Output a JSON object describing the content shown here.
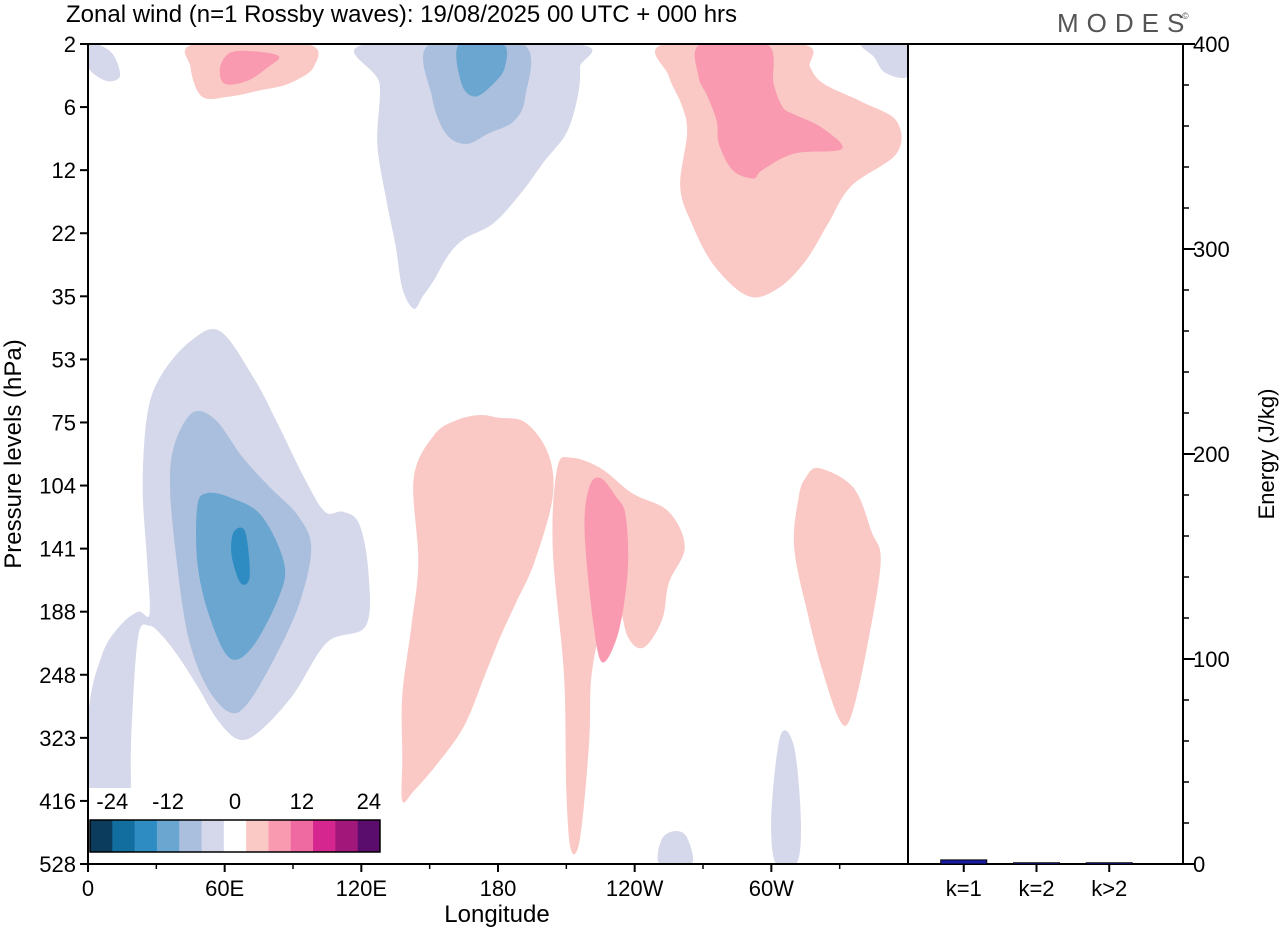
{
  "chart_data": [
    {
      "type": "heatmap",
      "title": "Zonal wind (n=1 Rossby waves):  19/08/2025  00 UTC  + 000 hrs",
      "brand": "MODES",
      "brand_mark": "©",
      "xlabel": "Longitude",
      "ylabel": "Pressure levels (hPa)",
      "x_range_deg": [
        0,
        360
      ],
      "x_ticks": [
        {
          "deg": 0,
          "label": "0"
        },
        {
          "deg": 60,
          "label": "60E"
        },
        {
          "deg": 120,
          "label": "120E"
        },
        {
          "deg": 180,
          "label": "180"
        },
        {
          "deg": 240,
          "label": "120W"
        },
        {
          "deg": 300,
          "label": "60W"
        }
      ],
      "y_levels": [
        "2",
        "6",
        "12",
        "22",
        "35",
        "53",
        "75",
        "104",
        "141",
        "188",
        "248",
        "323",
        "416",
        "528"
      ],
      "colorbar": {
        "labels": [
          "-24",
          "-12",
          "0",
          "12",
          "24"
        ],
        "colors": [
          "#0b3c5d",
          "#136ea0",
          "#2f8cc2",
          "#6aa6d0",
          "#a9bfdd",
          "#d5d8ea",
          "#ffffff",
          "#fac9c5",
          "#f99ab0",
          "#f06aa2",
          "#d5268f",
          "#a1177a",
          "#5b0d6d"
        ]
      },
      "contours": [
        {
          "name": "neg-upper-strat-light",
          "color": "#d5d8ea",
          "pts": [
            [
              122,
              2
            ],
            [
              128,
              4
            ],
            [
              127,
              9
            ],
            [
              131,
              16
            ],
            [
              135,
              24
            ],
            [
              138,
              33
            ],
            [
              143,
              38
            ],
            [
              147,
              35
            ],
            [
              152,
              31
            ],
            [
              158,
              26
            ],
            [
              165,
              23
            ],
            [
              178,
              20
            ],
            [
              190,
              15
            ],
            [
              200,
              11
            ],
            [
              210,
              8
            ],
            [
              215,
              5
            ],
            [
              216,
              3
            ],
            [
              214,
              2
            ]
          ]
        },
        {
          "name": "neg-upper-strat-mid",
          "color": "#a9bfdd",
          "pts": [
            [
              150,
              2
            ],
            [
              151,
              5
            ],
            [
              157,
              8
            ],
            [
              166,
              9
            ],
            [
              176,
              8
            ],
            [
              187,
              7
            ],
            [
              192,
              5
            ],
            [
              191,
              2
            ]
          ]
        },
        {
          "name": "neg-upper-strat-core",
          "color": "#6aa6d0",
          "pts": [
            [
              163,
              2
            ],
            [
              164,
              4
            ],
            [
              170,
              5
            ],
            [
              178,
              4
            ],
            [
              183,
              3
            ],
            [
              182,
              2
            ]
          ]
        },
        {
          "name": "neg-edge-left-top",
          "color": "#d5d8ea",
          "pts": [
            [
              0,
              2
            ],
            [
              0,
              3
            ],
            [
              8,
              3.8
            ],
            [
              14,
              3.5
            ],
            [
              11,
              2.4
            ],
            [
              4,
              2
            ]
          ]
        },
        {
          "name": "neg-edge-right-top",
          "color": "#d5d8ea",
          "pts": [
            [
              340,
              2
            ],
            [
              345,
              2.5
            ],
            [
              350,
              3.3
            ],
            [
              360,
              3.5
            ],
            [
              360,
              2
            ]
          ]
        },
        {
          "name": "neg-lower-large-light",
          "color": "#d5d8ea",
          "pts": [
            [
              0,
              300
            ],
            [
              0,
              528
            ],
            [
              17,
              528
            ],
            [
              19,
              320
            ],
            [
              22,
              210
            ],
            [
              27,
              200
            ],
            [
              33,
              210
            ],
            [
              40,
              230
            ],
            [
              48,
              260
            ],
            [
              57,
              300
            ],
            [
              66,
              325
            ],
            [
              75,
              315
            ],
            [
              90,
              270
            ],
            [
              105,
              215
            ],
            [
              122,
              200
            ],
            [
              123,
              155
            ],
            [
              119,
              125
            ],
            [
              112,
              118
            ],
            [
              104,
              118
            ],
            [
              95,
              100
            ],
            [
              83,
              75
            ],
            [
              73,
              59
            ],
            [
              58,
              44
            ],
            [
              45,
              47
            ],
            [
              32,
              58
            ],
            [
              26,
              72
            ],
            [
              24,
              105
            ],
            [
              26,
              150
            ],
            [
              27,
              190
            ],
            [
              22,
              188
            ],
            [
              14,
              200
            ],
            [
              6,
              228
            ]
          ]
        },
        {
          "name": "neg-lower-mid",
          "color": "#a9bfdd",
          "pts": [
            [
              38,
              84
            ],
            [
              36,
              105
            ],
            [
              39,
              150
            ],
            [
              44,
              210
            ],
            [
              52,
              260
            ],
            [
              62,
              290
            ],
            [
              70,
              280
            ],
            [
              82,
              230
            ],
            [
              93,
              180
            ],
            [
              98,
              140
            ],
            [
              92,
              120
            ],
            [
              80,
              105
            ],
            [
              68,
              90
            ],
            [
              56,
              74
            ],
            [
              46,
              71
            ]
          ]
        },
        {
          "name": "neg-lower-strong",
          "color": "#6aa6d0",
          "pts": [
            [
              48,
              115
            ],
            [
              48,
              150
            ],
            [
              53,
              190
            ],
            [
              62,
              230
            ],
            [
              72,
              220
            ],
            [
              84,
              175
            ],
            [
              86,
              150
            ],
            [
              76,
              120
            ],
            [
              62,
              110
            ],
            [
              52,
              108
            ]
          ]
        },
        {
          "name": "neg-lower-core",
          "color": "#2f8cc2",
          "pts": [
            [
              64,
              130
            ],
            [
              63,
              145
            ],
            [
              67,
              165
            ],
            [
              71,
              160
            ],
            [
              69,
              130
            ]
          ]
        },
        {
          "name": "neg-east-small",
          "color": "#d5d8ea",
          "pts": [
            [
              302,
              528
            ],
            [
              300,
              440
            ],
            [
              304,
              320
            ],
            [
              310,
              335
            ],
            [
              313,
              450
            ],
            [
              311,
              528
            ]
          ]
        },
        {
          "name": "neg-bottom-small",
          "color": "#d5d8ea",
          "pts": [
            [
              251,
              528
            ],
            [
              252,
              480
            ],
            [
              258,
              466
            ],
            [
              263,
              478
            ],
            [
              265,
              528
            ]
          ]
        },
        {
          "name": "pos-top-left-light",
          "color": "#fac9c5",
          "pts": [
            [
              45,
              3
            ],
            [
              50,
              5
            ],
            [
              62,
              5
            ],
            [
              75,
              4.5
            ],
            [
              88,
              4
            ],
            [
              99,
              3
            ],
            [
              96,
              2
            ],
            [
              47,
              2
            ]
          ]
        },
        {
          "name": "pos-top-left-mid",
          "color": "#f99ab0",
          "pts": [
            [
              58,
              3
            ],
            [
              60,
              4
            ],
            [
              70,
              3.8
            ],
            [
              79,
              3
            ],
            [
              84,
              2.5
            ],
            [
              76,
              2.3
            ],
            [
              63,
              2.3
            ]
          ]
        },
        {
          "name": "pos-east-strat-light",
          "color": "#fac9c5",
          "pts": [
            [
              253,
              2
            ],
            [
              255,
              3.5
            ],
            [
              261,
              6
            ],
            [
              263,
              8
            ],
            [
              260,
              14
            ],
            [
              265,
              20
            ],
            [
              275,
              28
            ],
            [
              290,
              35
            ],
            [
              303,
              33
            ],
            [
              315,
              27
            ],
            [
              325,
              20
            ],
            [
              335,
              14
            ],
            [
              355,
              10
            ],
            [
              355,
              7
            ],
            [
              340,
              5.5
            ],
            [
              323,
              4
            ],
            [
              317,
              3
            ],
            [
              313,
              2
            ]
          ]
        },
        {
          "name": "pos-east-strat-mid",
          "color": "#f99ab0",
          "pts": [
            [
              269,
              2
            ],
            [
              268,
              3.5
            ],
            [
              272,
              5
            ],
            [
              276,
              7
            ],
            [
              277,
              9
            ],
            [
              283,
              12
            ],
            [
              292,
              13
            ],
            [
              296,
              12
            ],
            [
              310,
              10
            ],
            [
              331,
              9.5
            ],
            [
              322,
              7.5
            ],
            [
              310,
              6.5
            ],
            [
              305,
              6
            ],
            [
              301,
              4
            ],
            [
              298,
              2
            ]
          ]
        },
        {
          "name": "pos-mid-light-1",
          "color": "#fac9c5",
          "pts": [
            [
              138,
              416
            ],
            [
              143,
              400
            ],
            [
              153,
              360
            ],
            [
              165,
              308
            ],
            [
              174,
              250
            ],
            [
              181,
              210
            ],
            [
              188,
              180
            ],
            [
              196,
              150
            ],
            [
              204,
              110
            ],
            [
              202,
              88
            ],
            [
              192,
              75
            ],
            [
              180,
              73
            ],
            [
              172,
              72
            ],
            [
              162,
              74
            ],
            [
              152,
              80
            ],
            [
              143,
              100
            ],
            [
              145,
              150
            ],
            [
              142,
              200
            ],
            [
              138,
              270
            ],
            [
              138,
              350
            ]
          ]
        },
        {
          "name": "pos-mid-light-2",
          "color": "#fac9c5",
          "pts": [
            [
              212,
              500
            ],
            [
              216,
              480
            ],
            [
              220,
              330
            ],
            [
              221,
              250
            ],
            [
              226,
              195
            ],
            [
              232,
              175
            ],
            [
              237,
              210
            ],
            [
              244,
              220
            ],
            [
              252,
              195
            ],
            [
              255,
              165
            ],
            [
              262,
              140
            ],
            [
              255,
              118
            ],
            [
              239,
              108
            ],
            [
              225,
              95
            ],
            [
              212,
              90
            ],
            [
              206,
              95
            ],
            [
              204,
              140
            ],
            [
              209,
              250
            ],
            [
              210,
              400
            ]
          ]
        },
        {
          "name": "pos-mid-core",
          "color": "#f99ab0",
          "pts": [
            [
              220,
              105
            ],
            [
              218,
              130
            ],
            [
              222,
              200
            ],
            [
              226,
              235
            ],
            [
              233,
              205
            ],
            [
              237,
              155
            ],
            [
              236,
              120
            ],
            [
              232,
              110
            ],
            [
              225,
              100
            ]
          ]
        },
        {
          "name": "pos-east-light",
          "color": "#fac9c5",
          "pts": [
            [
              312,
              110
            ],
            [
              310,
              140
            ],
            [
              316,
              190
            ],
            [
              322,
              240
            ],
            [
              330,
              300
            ],
            [
              335,
              295
            ],
            [
              342,
              220
            ],
            [
              348,
              150
            ],
            [
              344,
              130
            ],
            [
              336,
              105
            ],
            [
              321,
              95
            ],
            [
              315,
              100
            ]
          ]
        }
      ],
      "energy_panel": {
        "ylabel": "Energy (J/kg)",
        "ylim": [
          0,
          400
        ],
        "y_ticks": [
          "0",
          "100",
          "200",
          "300",
          "400"
        ],
        "categories": [
          "k=1",
          "k=2",
          "k>2"
        ],
        "values": [
          2.0,
          0.6,
          0.6
        ],
        "bar_color": "#1a1aa8"
      }
    }
  ]
}
